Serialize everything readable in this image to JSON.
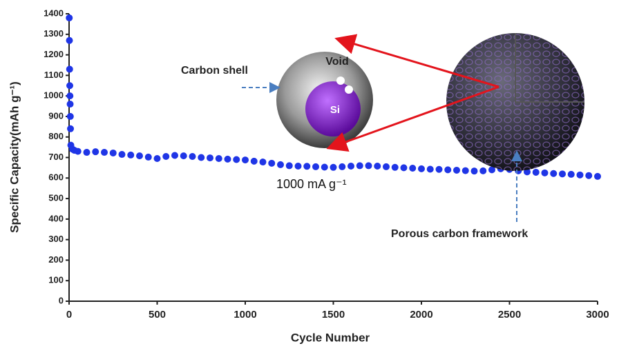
{
  "chart_data": {
    "type": "scatter",
    "xlabel": "Cycle Number",
    "ylabel": "Specific Capacity(mAh g⁻¹)",
    "xlim": [
      0,
      3000
    ],
    "xticks": [
      0,
      500,
      1000,
      1500,
      2000,
      2500,
      3000
    ],
    "ylim": [
      0,
      1400
    ],
    "yticks": [
      0,
      100,
      200,
      300,
      400,
      500,
      600,
      700,
      800,
      900,
      1000,
      1100,
      1200,
      1300,
      1400
    ],
    "annotations": {
      "rate": "1000 mA g⁻¹",
      "shell": "Carbon shell",
      "void": "Void",
      "core": "Si",
      "framework": "Porous carbon framework"
    },
    "series": [
      {
        "color": "#1f35e6",
        "x": [
          1,
          2,
          3,
          4,
          5,
          6,
          7,
          8,
          10,
          20,
          30,
          50,
          100,
          150,
          200,
          250,
          300,
          350,
          400,
          450,
          500,
          550,
          600,
          650,
          700,
          750,
          800,
          850,
          900,
          950,
          1000,
          1050,
          1100,
          1150,
          1200,
          1250,
          1300,
          1350,
          1400,
          1450,
          1500,
          1550,
          1600,
          1650,
          1700,
          1750,
          1800,
          1850,
          1900,
          1950,
          2000,
          2050,
          2100,
          2150,
          2200,
          2250,
          2300,
          2350,
          2400,
          2450,
          2500,
          2550,
          2600,
          2650,
          2700,
          2750,
          2800,
          2850,
          2900,
          2950,
          3000
        ],
        "values": [
          1380,
          1270,
          1130,
          1050,
          1000,
          960,
          900,
          840,
          760,
          740,
          735,
          730,
          725,
          728,
          725,
          722,
          715,
          712,
          708,
          702,
          695,
          705,
          710,
          708,
          705,
          700,
          698,
          695,
          692,
          690,
          688,
          682,
          678,
          672,
          665,
          660,
          658,
          657,
          655,
          653,
          652,
          655,
          658,
          660,
          660,
          658,
          655,
          652,
          650,
          648,
          645,
          643,
          642,
          640,
          638,
          636,
          634,
          635,
          640,
          645,
          642,
          635,
          630,
          628,
          625,
          622,
          620,
          618,
          615,
          612,
          608
        ]
      }
    ]
  }
}
